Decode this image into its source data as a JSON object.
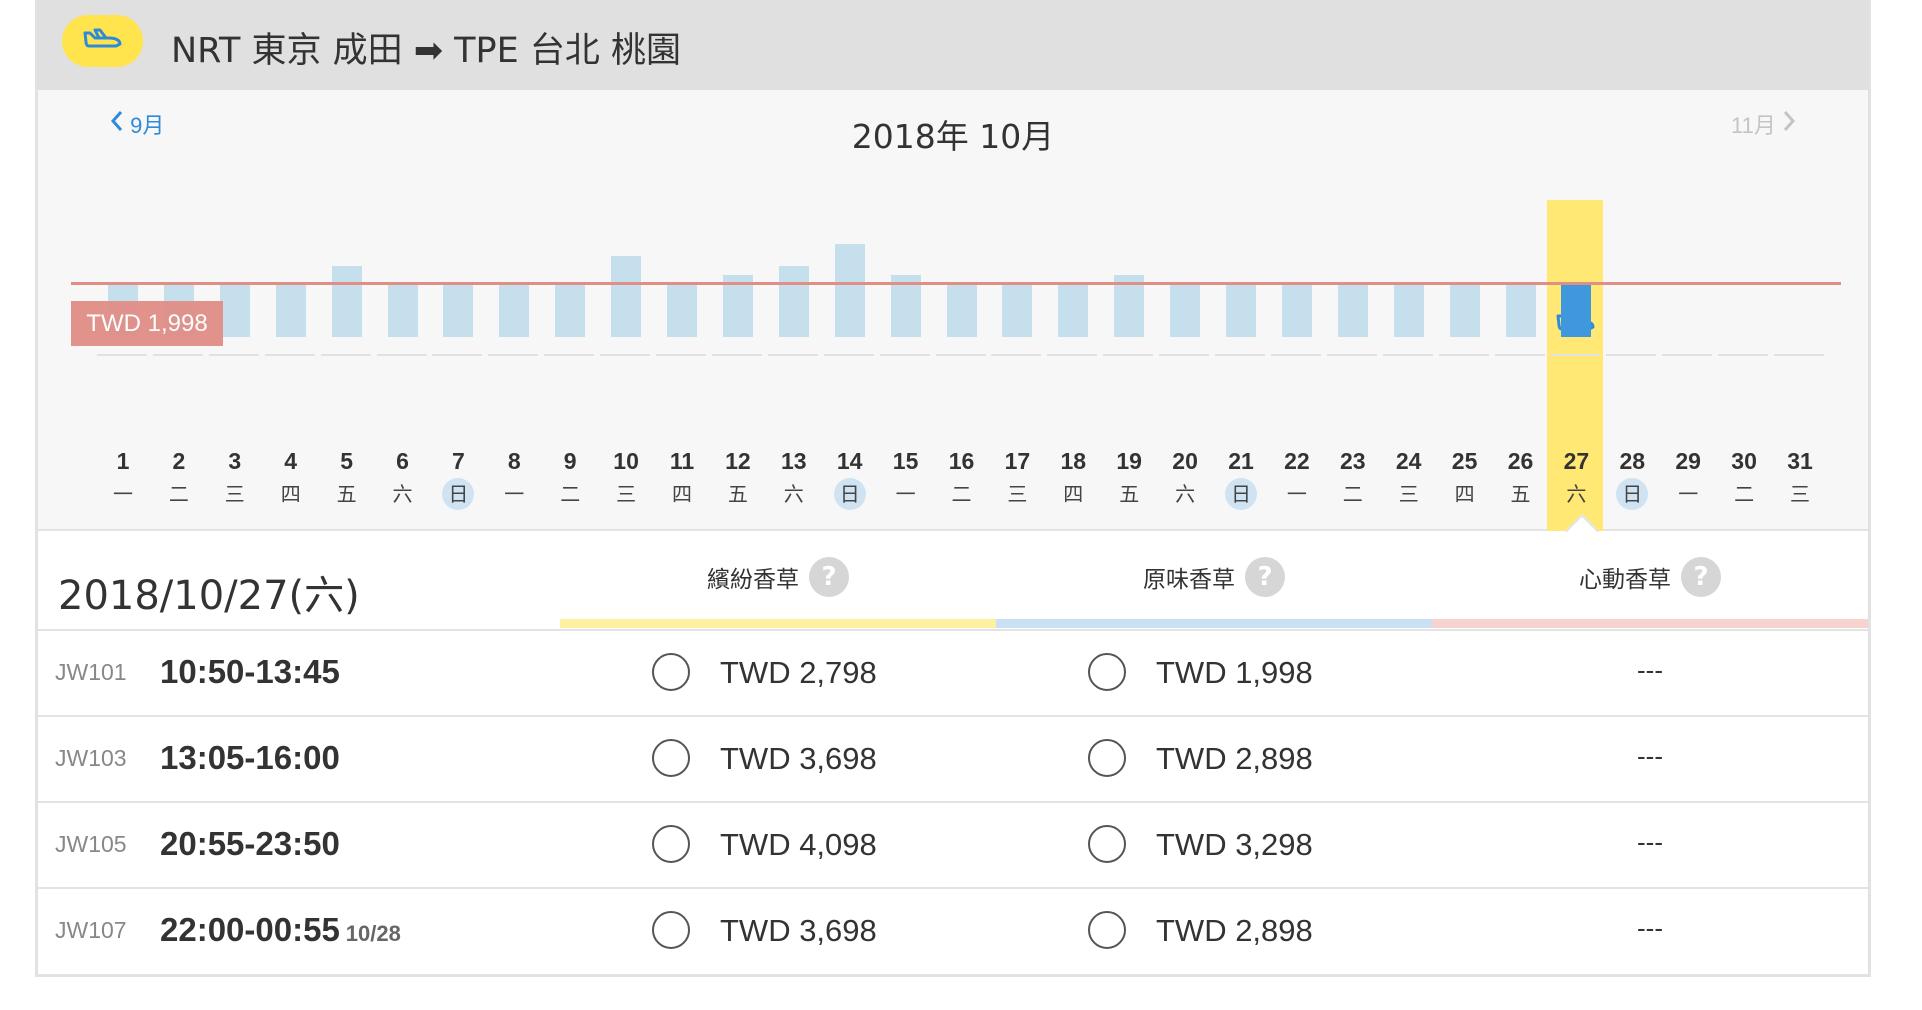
{
  "route": {
    "text": "NRT 東京 成田 ➡ TPE 台北 桃園",
    "icon": "plane-landing-icon"
  },
  "calendar": {
    "prev_label": "9月",
    "next_label": "11月",
    "title": "2018年 10月",
    "reference_price_label": "TWD 1,998",
    "selected_day": 27,
    "days": [
      {
        "d": "1",
        "w": "一",
        "h": 0.85,
        "avail": true
      },
      {
        "d": "2",
        "w": "二",
        "h": 0.85,
        "avail": true
      },
      {
        "d": "3",
        "w": "三",
        "h": 0.85,
        "avail": true
      },
      {
        "d": "4",
        "w": "四",
        "h": 0.85,
        "avail": true
      },
      {
        "d": "5",
        "w": "五",
        "h": 1.15,
        "avail": true
      },
      {
        "d": "6",
        "w": "六",
        "h": 0.85,
        "avail": true
      },
      {
        "d": "7",
        "w": "日",
        "h": 0.85,
        "avail": true,
        "sun": true
      },
      {
        "d": "8",
        "w": "一",
        "h": 0.85,
        "avail": true
      },
      {
        "d": "9",
        "w": "二",
        "h": 0.85,
        "avail": true
      },
      {
        "d": "10",
        "w": "三",
        "h": 1.3,
        "avail": true
      },
      {
        "d": "11",
        "w": "四",
        "h": 0.85,
        "avail": true
      },
      {
        "d": "12",
        "w": "五",
        "h": 1.0,
        "avail": true
      },
      {
        "d": "13",
        "w": "六",
        "h": 1.15,
        "avail": true
      },
      {
        "d": "14",
        "w": "日",
        "h": 1.5,
        "avail": true,
        "sun": true
      },
      {
        "d": "15",
        "w": "一",
        "h": 1.0,
        "avail": true
      },
      {
        "d": "16",
        "w": "二",
        "h": 0.85,
        "avail": true
      },
      {
        "d": "17",
        "w": "三",
        "h": 0.85,
        "avail": true
      },
      {
        "d": "18",
        "w": "四",
        "h": 0.85,
        "avail": true
      },
      {
        "d": "19",
        "w": "五",
        "h": 1.0,
        "avail": true
      },
      {
        "d": "20",
        "w": "六",
        "h": 0.85,
        "avail": true
      },
      {
        "d": "21",
        "w": "日",
        "h": 0.85,
        "avail": true,
        "sun": true
      },
      {
        "d": "22",
        "w": "一",
        "h": 0.85,
        "avail": true
      },
      {
        "d": "23",
        "w": "二",
        "h": 0.85,
        "avail": true
      },
      {
        "d": "24",
        "w": "三",
        "h": 0.85,
        "avail": true
      },
      {
        "d": "25",
        "w": "四",
        "h": 0.85,
        "avail": true
      },
      {
        "d": "26",
        "w": "五",
        "h": 0.85,
        "avail": true
      },
      {
        "d": "27",
        "w": "六",
        "h": 0.85,
        "avail": true,
        "selected": true
      },
      {
        "d": "28",
        "w": "日",
        "h": 0,
        "avail": false,
        "sun": true
      },
      {
        "d": "29",
        "w": "一",
        "h": 0,
        "avail": false
      },
      {
        "d": "30",
        "w": "二",
        "h": 0,
        "avail": false
      },
      {
        "d": "31",
        "w": "三",
        "h": 0,
        "avail": false
      }
    ]
  },
  "detail": {
    "date": "2018/10/27(六)",
    "columns": [
      {
        "label": "繽紛香草",
        "help": "?",
        "color": "#fdf0a0"
      },
      {
        "label": "原味香草",
        "help": "?",
        "color": "#c9e1f2"
      },
      {
        "label": "心動香草",
        "help": "?",
        "color": "#f6d3cf"
      }
    ],
    "flights": [
      {
        "no": "JW101",
        "time": "10:50-13:45",
        "next": "",
        "p1": "TWD 2,798",
        "p2": "TWD 1,998",
        "p3": "---"
      },
      {
        "no": "JW103",
        "time": "13:05-16:00",
        "next": "",
        "p1": "TWD 3,698",
        "p2": "TWD 2,898",
        "p3": "---"
      },
      {
        "no": "JW105",
        "time": "20:55-23:50",
        "next": "",
        "p1": "TWD 4,098",
        "p2": "TWD 3,298",
        "p3": "---"
      },
      {
        "no": "JW107",
        "time": "22:00-00:55",
        "next": "10/28",
        "p1": "TWD 3,698",
        "p2": "TWD 2,898",
        "p3": "---"
      }
    ]
  },
  "colors": {
    "bar": "#c6dfec",
    "bar_selected": "#3f97dd",
    "highlight": "#ffe873",
    "ref_line": "#e08e86",
    "accent_link": "#2e8bdb"
  }
}
